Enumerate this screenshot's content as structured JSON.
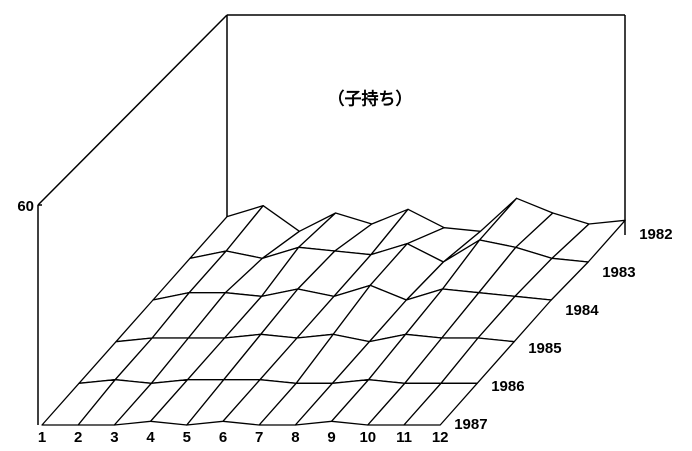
{
  "chart_data": {
    "type": "surface",
    "title": "（子持ち）",
    "categories": [
      "1",
      "2",
      "3",
      "4",
      "5",
      "6",
      "7",
      "8",
      "9",
      "10",
      "11",
      "12"
    ],
    "series": [
      {
        "name": "1982",
        "values": [
          5,
          8,
          1,
          6,
          3,
          7,
          2,
          1,
          10,
          6,
          3,
          4
        ]
      },
      {
        "name": "1983",
        "values": [
          4,
          6,
          4,
          7,
          6,
          5,
          8,
          3,
          9,
          7,
          4,
          3
        ]
      },
      {
        "name": "1984",
        "values": [
          3,
          5,
          5,
          4,
          6,
          4,
          7,
          3,
          6,
          5,
          4,
          3
        ]
      },
      {
        "name": "1985",
        "values": [
          2,
          3,
          3,
          3,
          4,
          3,
          4,
          2,
          4,
          3,
          3,
          2
        ]
      },
      {
        "name": "1986",
        "values": [
          1,
          2,
          1,
          2,
          2,
          2,
          1,
          1,
          2,
          1,
          1,
          1
        ]
      },
      {
        "name": "1987",
        "values": [
          0,
          0,
          0,
          1,
          0,
          1,
          0,
          0,
          1,
          0,
          0,
          0
        ]
      }
    ],
    "zlim": [
      0,
      60
    ],
    "zticks": [
      60
    ],
    "color": "#000000"
  }
}
